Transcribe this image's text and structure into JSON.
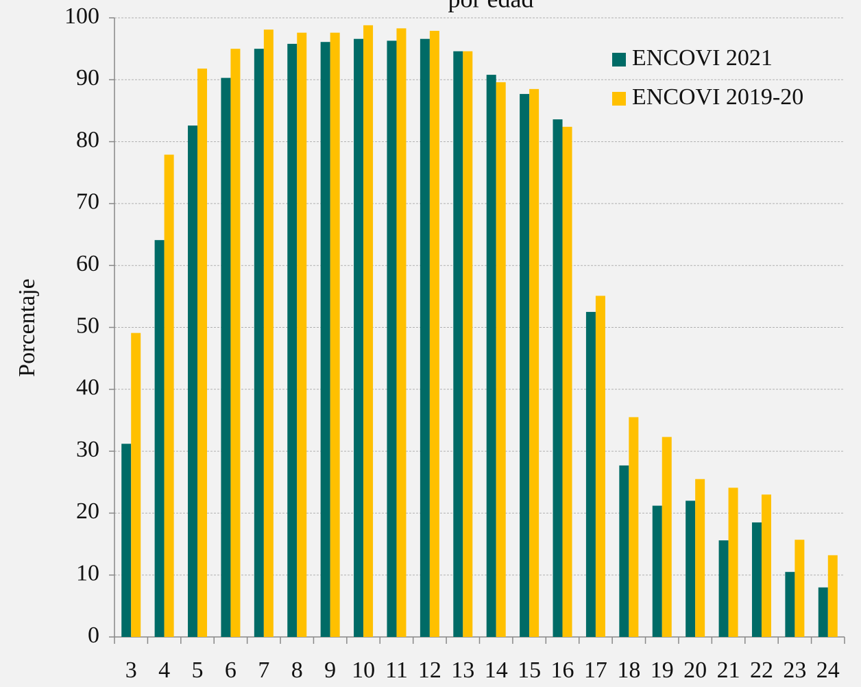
{
  "chart_data": {
    "type": "bar",
    "title": "por edad",
    "y_label": "Porcentaje",
    "categories": [
      "3",
      "4",
      "5",
      "6",
      "7",
      "8",
      "9",
      "10",
      "11",
      "12",
      "13",
      "14",
      "15",
      "16",
      "17",
      "18",
      "19",
      "20",
      "21",
      "22",
      "23",
      "24"
    ],
    "series": [
      {
        "name": "ENCOVI 2021",
        "color": "#006b66",
        "values": [
          31.2,
          64.1,
          82.6,
          90.3,
          95.0,
          95.8,
          96.1,
          96.6,
          96.3,
          96.6,
          94.6,
          90.8,
          87.7,
          83.6,
          52.5,
          27.7,
          21.2,
          22.0,
          15.6,
          18.5,
          10.5,
          8.0
        ]
      },
      {
        "name": "ENCOVI 2019-20",
        "color": "#ffc000",
        "values": [
          49.1,
          77.9,
          91.8,
          95.0,
          98.1,
          97.6,
          97.6,
          98.8,
          98.3,
          97.9,
          94.6,
          89.6,
          88.5,
          82.4,
          55.1,
          35.5,
          32.3,
          25.5,
          24.1,
          23.0,
          15.7,
          13.2
        ]
      }
    ],
    "ylim": [
      0,
      100
    ],
    "yticks": [
      0,
      10,
      20,
      30,
      40,
      50,
      60,
      70,
      80,
      90,
      100
    ],
    "grid": true,
    "legend": "top-right"
  }
}
